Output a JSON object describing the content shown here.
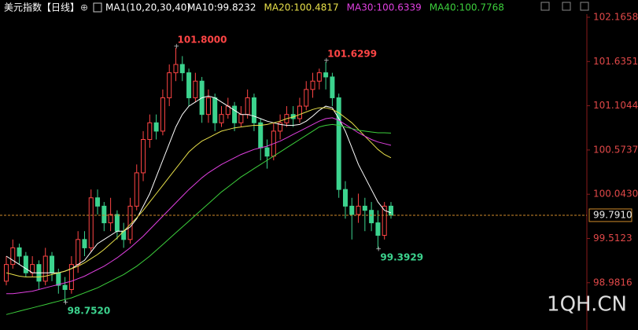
{
  "chart_data": {
    "type": "candlestick",
    "title": "美元指数【日线】",
    "indicator_label": "MA1(10,20,30,40)",
    "up_color": "#ff4545",
    "down_color": "#3cd38e",
    "open": [
      99.0,
      99.2,
      99.4,
      99.3,
      99.1,
      99.2,
      99.0,
      99.3,
      99.1,
      98.95,
      98.9,
      99.2,
      99.5,
      99.4,
      100.0,
      99.9,
      99.7,
      99.8,
      99.6,
      99.5,
      99.9,
      100.3,
      100.7,
      100.9,
      100.8,
      101.2,
      101.5,
      101.6,
      101.5,
      101.2,
      101.4,
      101.0,
      101.2,
      100.9,
      101.0,
      101.1,
      100.9,
      101.0,
      101.2,
      100.9,
      100.6,
      100.5,
      100.8,
      100.9,
      101.0,
      100.95,
      101.1,
      101.3,
      101.4,
      101.5,
      101.45,
      101.2,
      100.1,
      99.9,
      99.8,
      99.9,
      99.85,
      99.7,
      99.55,
      99.9
    ],
    "high": [
      99.3,
      99.5,
      99.45,
      99.35,
      99.3,
      99.25,
      99.4,
      99.35,
      99.15,
      99.05,
      99.3,
      99.6,
      99.6,
      100.1,
      100.1,
      99.95,
      100.0,
      99.85,
      99.7,
      100.0,
      100.4,
      100.8,
      101.0,
      101.0,
      101.3,
      101.6,
      101.8,
      101.7,
      101.55,
      101.5,
      101.45,
      101.3,
      101.25,
      101.1,
      101.2,
      101.15,
      101.1,
      101.3,
      101.25,
      100.95,
      100.7,
      100.9,
      101.0,
      101.1,
      101.1,
      101.2,
      101.4,
      101.5,
      101.55,
      101.6299,
      101.5,
      101.25,
      100.2,
      100.0,
      100.05,
      100.0,
      99.95,
      99.85,
      99.95,
      99.95
    ],
    "low": [
      98.95,
      99.15,
      99.2,
      99.05,
      99.05,
      98.9,
      98.95,
      99.0,
      98.85,
      98.752,
      98.85,
      99.1,
      99.3,
      99.35,
      99.8,
      99.6,
      99.6,
      99.5,
      99.4,
      99.45,
      99.85,
      100.2,
      100.6,
      100.7,
      100.75,
      101.1,
      101.4,
      101.4,
      101.1,
      101.15,
      100.9,
      100.9,
      100.8,
      100.85,
      100.95,
      100.8,
      100.85,
      100.95,
      100.8,
      100.45,
      100.35,
      100.45,
      100.7,
      100.85,
      100.85,
      100.9,
      101.05,
      101.2,
      101.3,
      101.3,
      101.1,
      100.0,
      99.75,
      99.5,
      99.7,
      99.6,
      99.6,
      99.3929,
      99.5,
      99.75
    ],
    "close": [
      99.2,
      99.4,
      99.3,
      99.1,
      99.2,
      99.0,
      99.3,
      99.1,
      98.95,
      98.9,
      99.2,
      99.5,
      99.4,
      100.0,
      99.9,
      99.7,
      99.8,
      99.6,
      99.5,
      99.9,
      100.3,
      100.7,
      100.9,
      100.8,
      101.2,
      101.5,
      101.6,
      101.5,
      101.2,
      101.4,
      101.0,
      101.2,
      100.9,
      101.0,
      101.1,
      100.9,
      101.0,
      101.2,
      100.9,
      100.6,
      100.5,
      100.8,
      100.9,
      101.0,
      100.95,
      101.1,
      101.3,
      101.4,
      101.5,
      101.45,
      101.2,
      100.1,
      99.9,
      99.8,
      99.9,
      99.85,
      99.7,
      99.55,
      99.9,
      99.791
    ],
    "series": [
      {
        "name": "MA10:99.8232",
        "color": "#ffffff",
        "values": [
          99.3,
          99.25,
          99.2,
          99.15,
          99.1,
          99.1,
          99.1,
          99.1,
          99.1,
          99.12,
          99.15,
          99.2,
          99.25,
          99.35,
          99.45,
          99.5,
          99.55,
          99.6,
          99.6,
          99.65,
          99.75,
          99.9,
          100.05,
          100.25,
          100.45,
          100.65,
          100.85,
          101.0,
          101.1,
          101.15,
          101.2,
          101.22,
          101.2,
          101.15,
          101.1,
          101.05,
          101.0,
          101.0,
          100.98,
          100.95,
          100.92,
          100.9,
          100.88,
          100.87,
          100.87,
          100.88,
          100.92,
          100.98,
          101.05,
          101.1,
          101.08,
          100.95,
          100.8,
          100.6,
          100.4,
          100.25,
          100.1,
          99.95,
          99.85,
          99.82
        ]
      },
      {
        "name": "MA20:100.4817",
        "color": "#e8e04a",
        "values": [
          99.1,
          99.08,
          99.06,
          99.05,
          99.05,
          99.05,
          99.06,
          99.08,
          99.1,
          99.12,
          99.15,
          99.18,
          99.22,
          99.27,
          99.32,
          99.38,
          99.45,
          99.52,
          99.6,
          99.68,
          99.76,
          99.85,
          99.95,
          100.05,
          100.15,
          100.25,
          100.35,
          100.45,
          100.55,
          100.62,
          100.68,
          100.72,
          100.76,
          100.8,
          100.82,
          100.84,
          100.85,
          100.86,
          100.87,
          100.87,
          100.88,
          100.9,
          100.92,
          100.95,
          100.97,
          101.0,
          101.03,
          101.06,
          101.08,
          101.08,
          101.06,
          101.02,
          100.96,
          100.9,
          100.82,
          100.74,
          100.66,
          100.58,
          100.52,
          100.48
        ]
      },
      {
        "name": "MA30:100.6339",
        "color": "#e040e0",
        "values": [
          98.85,
          98.85,
          98.86,
          98.87,
          98.88,
          98.9,
          98.92,
          98.94,
          98.96,
          98.98,
          99.0,
          99.03,
          99.06,
          99.1,
          99.14,
          99.18,
          99.23,
          99.28,
          99.34,
          99.4,
          99.47,
          99.54,
          99.62,
          99.7,
          99.78,
          99.86,
          99.94,
          100.02,
          100.1,
          100.17,
          100.24,
          100.3,
          100.35,
          100.4,
          100.44,
          100.48,
          100.52,
          100.55,
          100.58,
          100.6,
          100.62,
          100.65,
          100.68,
          100.72,
          100.76,
          100.8,
          100.84,
          100.88,
          100.92,
          100.95,
          100.96,
          100.93,
          100.88,
          100.83,
          100.78,
          100.74,
          100.7,
          100.67,
          100.65,
          100.63
        ]
      },
      {
        "name": "MA40:100.7768",
        "color": "#3ccf3c",
        "values": [
          98.6,
          98.62,
          98.64,
          98.66,
          98.68,
          98.7,
          98.72,
          98.74,
          98.76,
          98.78,
          98.8,
          98.83,
          98.86,
          98.89,
          98.92,
          98.96,
          99.0,
          99.04,
          99.08,
          99.13,
          99.18,
          99.24,
          99.3,
          99.37,
          99.44,
          99.51,
          99.58,
          99.65,
          99.72,
          99.79,
          99.86,
          99.93,
          100.0,
          100.07,
          100.13,
          100.19,
          100.25,
          100.3,
          100.35,
          100.4,
          100.45,
          100.5,
          100.55,
          100.6,
          100.65,
          100.7,
          100.75,
          100.8,
          100.85,
          100.87,
          100.88,
          100.87,
          100.85,
          100.83,
          100.81,
          100.8,
          100.79,
          100.78,
          100.78,
          100.7768
        ]
      }
    ],
    "annotations": [
      "101.8000",
      "101.6299",
      "98.7520",
      "99.3929"
    ],
    "current_price_label": "99.7910",
    "ylim": [
      98.4142,
      102.1658
    ],
    "yticks": [
      102.1658,
      101.6351,
      101.1044,
      100.5737,
      {
        "value": 100.043,
        "label": "100.0430"
      },
      99.5123,
      98.9816
    ],
    "watermark": "1QH.CN"
  }
}
